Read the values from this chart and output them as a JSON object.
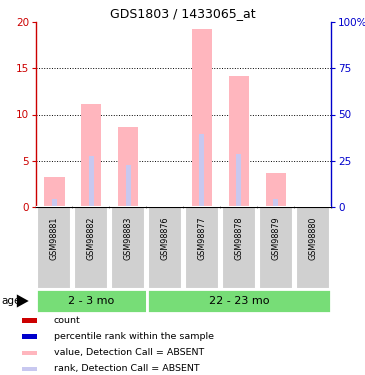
{
  "title": "GDS1803 / 1433065_at",
  "samples": [
    "GSM98881",
    "GSM98882",
    "GSM98883",
    "GSM98876",
    "GSM98877",
    "GSM98878",
    "GSM98879",
    "GSM98880"
  ],
  "groups": [
    {
      "label": "2 - 3 mo",
      "n_samples": 3
    },
    {
      "label": "22 - 23 mo",
      "n_samples": 5
    }
  ],
  "bar_values": [
    3.2,
    11.1,
    8.6,
    0.0,
    19.2,
    14.2,
    3.7,
    0.0
  ],
  "rank_values": [
    0.9,
    5.5,
    4.5,
    0.0,
    7.9,
    5.7,
    0.9,
    0.0
  ],
  "left_ylim": [
    0,
    20
  ],
  "right_ylim": [
    0,
    100
  ],
  "left_yticks": [
    0,
    5,
    10,
    15,
    20
  ],
  "right_yticks": [
    0,
    25,
    50,
    75,
    100
  ],
  "right_yticklabels": [
    "0",
    "25",
    "50",
    "75",
    "100%"
  ],
  "bar_color_absent": "#FFB6BE",
  "rank_color_absent": "#C8C8F0",
  "group_bg_color": "#77DD77",
  "sample_bg_color": "#D0D0D0",
  "grid_color": "#000000",
  "left_tick_color": "#CC0000",
  "right_tick_color": "#0000CC",
  "legend_items": [
    {
      "color": "#CC0000",
      "label": "count",
      "square": true
    },
    {
      "color": "#0000CC",
      "label": "percentile rank within the sample",
      "square": true
    },
    {
      "color": "#FFB6BE",
      "label": "value, Detection Call = ABSENT",
      "square": true
    },
    {
      "color": "#C8C8F0",
      "label": "rank, Detection Call = ABSENT",
      "square": true
    }
  ],
  "fig_width": 3.65,
  "fig_height": 3.75,
  "dpi": 100
}
